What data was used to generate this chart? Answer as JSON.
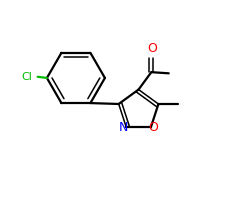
{
  "background": "#ffffff",
  "bond_color": "#000000",
  "cl_color": "#00bb00",
  "n_color": "#0000ff",
  "o_color": "#ff0000",
  "text_color": "#000000",
  "figsize": [
    2.4,
    2.0
  ],
  "dpi": 100,
  "xlim": [
    0,
    10
  ],
  "ylim": [
    0,
    8.5
  ]
}
